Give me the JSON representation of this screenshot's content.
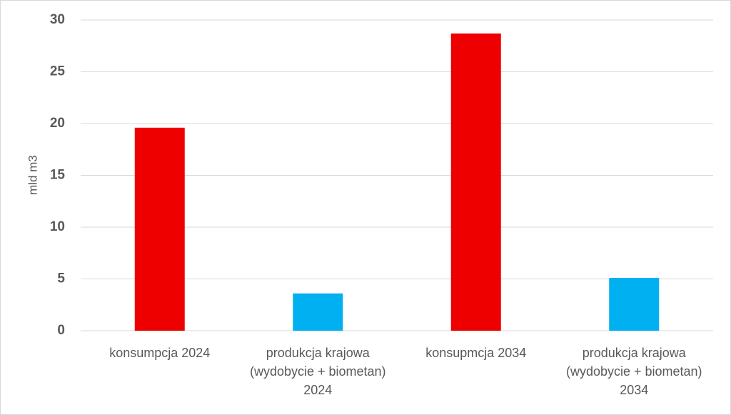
{
  "chart_data": {
    "type": "bar",
    "y_label": "mld m3",
    "categories": [
      "konsumpcja 2024",
      "produkcja krajowa (wydobycie + biometan) 2024",
      "konsupmcja 2034",
      "produkcja krajowa (wydobycie + biometan) 2034"
    ],
    "values": [
      19.6,
      3.6,
      28.7,
      5.1
    ],
    "colors": [
      "#ee0000",
      "#00b0f0",
      "#ee0000",
      "#00b0f0"
    ],
    "ylim": [
      0,
      30
    ],
    "yticks": [
      0,
      5,
      10,
      15,
      20,
      25,
      30
    ],
    "grid": true
  }
}
